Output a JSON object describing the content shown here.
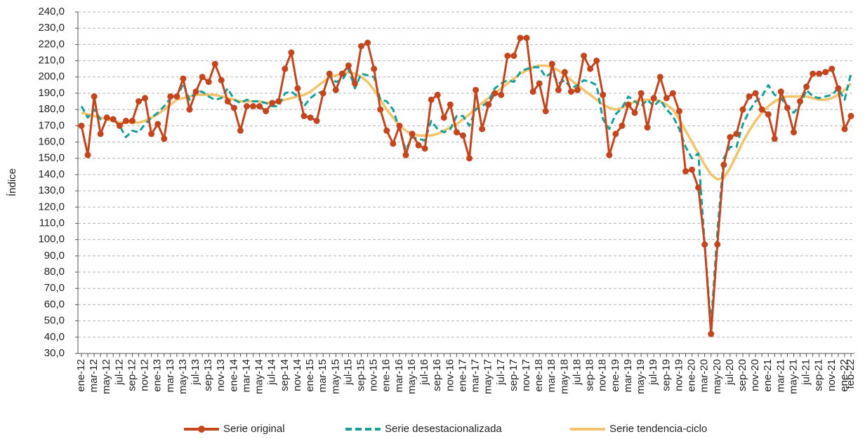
{
  "chart_data": {
    "type": "line",
    "y_label": "Índice",
    "categories": [
      "ene-12",
      null,
      "mar-12",
      null,
      "may-12",
      null,
      "jul-12",
      null,
      "sep-12",
      null,
      "nov-12",
      null,
      "ene-13",
      null,
      "mar-13",
      null,
      "may-13",
      null,
      "jul-13",
      null,
      "sep-13",
      null,
      "nov-13",
      null,
      "ene-14",
      null,
      "mar-14",
      null,
      "may-14",
      null,
      "jul-14",
      null,
      "sep-14",
      null,
      "nov-14",
      null,
      "ene-15",
      null,
      "mar-15",
      null,
      "may-15",
      null,
      "jul-15",
      null,
      "sep-15",
      null,
      "nov-15",
      null,
      "ene-16",
      null,
      "mar-16",
      null,
      "may-16",
      null,
      "jul-16",
      null,
      "sep-16",
      null,
      "nov-16",
      null,
      "ene-17",
      null,
      "mar-17",
      null,
      "may-17",
      null,
      "jul-17",
      null,
      "sep-17",
      null,
      "nov-17",
      null,
      "ene-18",
      null,
      "mar-18",
      null,
      "may-18",
      null,
      "jul-18",
      null,
      "sep-18",
      null,
      "nov-18",
      null,
      "ene-19",
      null,
      "mar-19",
      null,
      "may-19",
      null,
      "jul-19",
      null,
      "sep-19",
      null,
      "nov-19",
      null,
      "ene-20",
      null,
      "mar-20",
      null,
      "may-20",
      null,
      "jul-20",
      null,
      "sep-20",
      null,
      "nov-20",
      null,
      "ene-21",
      null,
      "mar-21",
      null,
      "may-21",
      null,
      "jul-21",
      null,
      "sep-21",
      null,
      "nov-21",
      null,
      "ene-22",
      "feb-22"
    ],
    "series": [
      {
        "name": "Serie original",
        "color": "#c4461f",
        "marker": "circle",
        "values": [
          170,
          152,
          188,
          165,
          175,
          174,
          170,
          173,
          173,
          185,
          187,
          165,
          171,
          162,
          188,
          188,
          199,
          180,
          191,
          200,
          197,
          208,
          198,
          185,
          181,
          167,
          182,
          182,
          182,
          179,
          184,
          185,
          205,
          215,
          193,
          176,
          175,
          173,
          190,
          202,
          192,
          202,
          207,
          196,
          219,
          221,
          205,
          180,
          167,
          159,
          170,
          152,
          165,
          158,
          156,
          186,
          189,
          175,
          183,
          166,
          164,
          150,
          192,
          168,
          183,
          190,
          189,
          213,
          213,
          224,
          224,
          191,
          196,
          179,
          208,
          192,
          203,
          191,
          192,
          213,
          205,
          210,
          189,
          152,
          165,
          170,
          183,
          178,
          190,
          169,
          187,
          200,
          187,
          190,
          179,
          142,
          143,
          132,
          97,
          42,
          97,
          146,
          163,
          165,
          180,
          188,
          190,
          180,
          177,
          162,
          191,
          181,
          166,
          185,
          194,
          202,
          202,
          203,
          205,
          193,
          168,
          176
        ]
      },
      {
        "name": "Serie desestacionalizada",
        "color": "#17a09a",
        "dashed": true,
        "values": [
          182,
          175,
          180,
          174,
          175,
          174,
          170,
          163,
          167,
          166,
          171,
          175,
          178,
          182,
          187,
          187,
          196,
          186,
          191,
          191,
          188,
          186,
          187,
          193,
          186,
          184,
          186,
          185,
          185,
          184,
          182,
          182,
          190,
          191,
          188,
          182,
          187,
          190,
          191,
          201,
          197,
          198,
          205,
          193,
          202,
          201,
          200,
          186,
          185,
          180,
          168,
          155,
          163,
          162,
          161,
          173,
          168,
          166,
          168,
          176,
          176,
          170,
          180,
          182,
          185,
          193,
          196,
          198,
          197,
          203,
          205,
          206,
          206,
          200,
          203,
          196,
          198,
          193,
          195,
          198,
          197,
          195,
          174,
          168,
          177,
          181,
          188,
          185,
          182,
          186,
          182,
          186,
          180,
          176,
          168,
          157,
          150,
          153,
          97,
          47,
          105,
          150,
          157,
          157,
          171,
          179,
          185,
          188,
          195,
          189,
          187,
          181,
          178,
          183,
          192,
          188,
          187,
          188,
          189,
          193,
          186,
          202
        ]
      },
      {
        "name": "Serie tendencia-ciclo",
        "color": "#f3c46c",
        "values": [
          178,
          177,
          176,
          175,
          174,
          173,
          172,
          172,
          172,
          172,
          173,
          175,
          177,
          180,
          183,
          186,
          187,
          188,
          189,
          189,
          189,
          189,
          188,
          187,
          186,
          185,
          185,
          185,
          185,
          184,
          184,
          185,
          186,
          187,
          188,
          189,
          191,
          194,
          197,
          200,
          201,
          202,
          203,
          202,
          200,
          197,
          192,
          186,
          180,
          175,
          170,
          167,
          165,
          164,
          164,
          164,
          165,
          167,
          169,
          171,
          174,
          177,
          181,
          184,
          187,
          190,
          193,
          196,
          199,
          202,
          204,
          206,
          207,
          207,
          206,
          204,
          201,
          198,
          195,
          192,
          189,
          186,
          183,
          181,
          180,
          181,
          183,
          185,
          186,
          186,
          186,
          185,
          183,
          180,
          174,
          167,
          160,
          153,
          146,
          140,
          137,
          138,
          144,
          152,
          160,
          167,
          173,
          178,
          182,
          185,
          187,
          188,
          188,
          188,
          188,
          187,
          186,
          186,
          187,
          189,
          192,
          196
        ]
      }
    ],
    "ylim": [
      30,
      240
    ],
    "yticks": [
      {
        "value": 30,
        "label": "30,0"
      },
      {
        "value": 40,
        "label": "40,0"
      },
      {
        "value": 50,
        "label": "50,0"
      },
      {
        "value": 60,
        "label": "60,0"
      },
      {
        "value": 70,
        "label": "70,0"
      },
      {
        "value": 80,
        "label": "80,0"
      },
      {
        "value": 90,
        "label": "90,0"
      },
      {
        "value": 100,
        "label": "100,0"
      },
      {
        "value": 110,
        "label": "110,0"
      },
      {
        "value": 120,
        "label": "120,0"
      },
      {
        "value": 130,
        "label": "130,0"
      },
      {
        "value": 140,
        "label": "140,0"
      },
      {
        "value": 150,
        "label": "150,0"
      },
      {
        "value": 160,
        "label": "160,0"
      },
      {
        "value": 170,
        "label": "170,0"
      },
      {
        "value": 180,
        "label": "180,0"
      },
      {
        "value": 190,
        "label": "190,0"
      },
      {
        "value": 200,
        "label": "200,0"
      },
      {
        "value": 210,
        "label": "210,0"
      },
      {
        "value": 220,
        "label": "220,0"
      },
      {
        "value": 230,
        "label": "230,0"
      },
      {
        "value": 240,
        "label": "240,0"
      }
    ],
    "grid": true,
    "legend": "bottom"
  }
}
